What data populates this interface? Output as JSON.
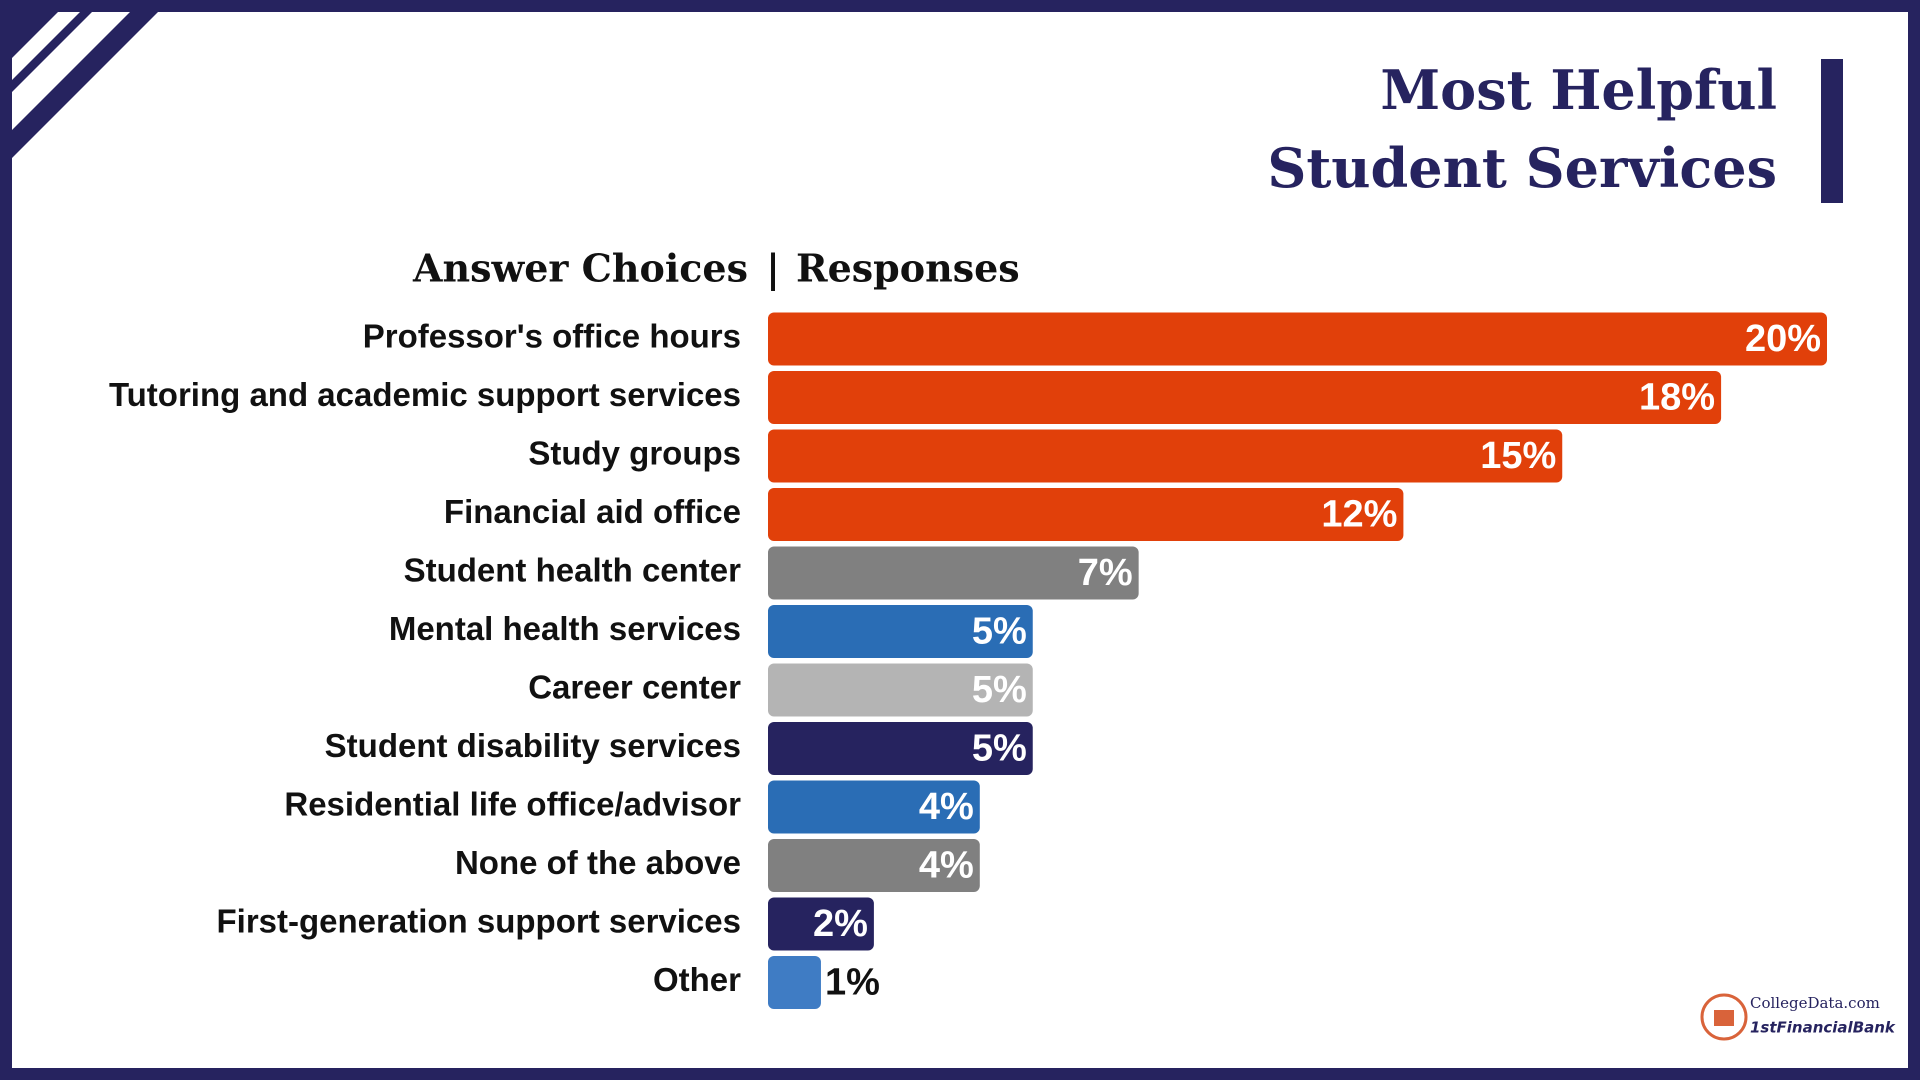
{
  "chart_data": {
    "type": "bar",
    "orientation": "horizontal",
    "title": [
      "Most Helpful",
      "Student Services"
    ],
    "column_headers": [
      "Answer Choices",
      "|",
      "Responses"
    ],
    "categories": [
      "Professor's office hours",
      "Tutoring and academic support services",
      "Study groups",
      "Financial aid office",
      "Student health center",
      "Mental health services",
      "Career center",
      "Student disability services",
      "Residential life office/advisor",
      "None of the above",
      "First-generation support services",
      "Other"
    ],
    "values": [
      20,
      18,
      15,
      12,
      7,
      5,
      5,
      5,
      4,
      4,
      2,
      1
    ],
    "value_labels": [
      "20%",
      "18%",
      "15%",
      "12%",
      "7%",
      "5%",
      "5%",
      "5%",
      "4%",
      "4%",
      "2%",
      "1%"
    ],
    "colors": [
      "#e1400a",
      "#e1400a",
      "#e1400a",
      "#e1400a",
      "#808080",
      "#2a6db5",
      "#b4b4b4",
      "#26235f",
      "#2a6db5",
      "#808080",
      "#26235f",
      "#3f7cc4"
    ],
    "xlim": [
      0,
      20
    ],
    "logo": [
      "CollegeData.com",
      "1stFinancialBank"
    ]
  }
}
